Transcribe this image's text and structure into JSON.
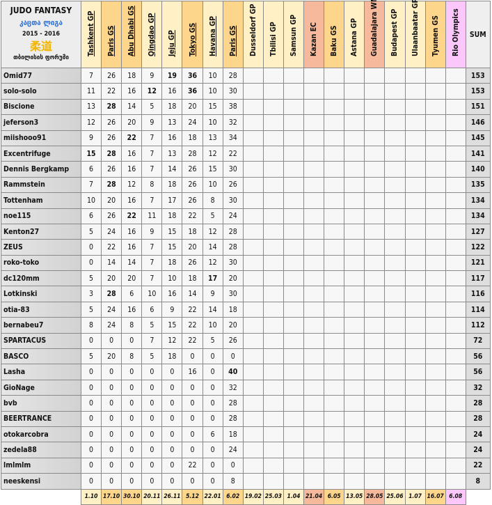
{
  "header": {
    "title": "JUDO FANTASY",
    "subtitle_georgian": "კაცთა ლიგა",
    "season": "2015 - 2016",
    "kanji": "柔道",
    "forum": "თბილისის ფორუმი",
    "sum_label": "SUM"
  },
  "colors": {
    "light": "#fff0c6",
    "orange": "#fdd68c",
    "salmon": "#f6b99c",
    "pink": "#fcc8fb"
  },
  "events": [
    {
      "name": "Tashkent GP",
      "date": "1.10",
      "color": "light",
      "completed": true
    },
    {
      "name": "Paris GS",
      "date": "17.10",
      "color": "orange",
      "completed": true
    },
    {
      "name": "Abu Dhabi GS",
      "date": "30.10",
      "color": "orange",
      "completed": true
    },
    {
      "name": "Qingdao GP",
      "date": "20.11",
      "color": "light",
      "completed": true
    },
    {
      "name": "Jeju GP",
      "date": "26.11",
      "color": "light",
      "completed": true
    },
    {
      "name": "Tokyo GS",
      "date": "5.12",
      "color": "orange",
      "completed": true
    },
    {
      "name": "Havana GP",
      "date": "22.01",
      "color": "light",
      "completed": true
    },
    {
      "name": "Paris GS",
      "date": "6.02",
      "color": "orange",
      "completed": true
    },
    {
      "name": "Dusseldorf GP",
      "date": "19.02",
      "color": "light",
      "completed": false
    },
    {
      "name": "Tbilisi GP",
      "date": "25.03",
      "color": "light",
      "completed": false
    },
    {
      "name": "Samsun GP",
      "date": "1.04",
      "color": "light",
      "completed": false
    },
    {
      "name": "Kazan EC",
      "date": "21.04",
      "color": "salmon",
      "completed": false
    },
    {
      "name": "Baku GS",
      "date": "6.05",
      "color": "orange",
      "completed": false
    },
    {
      "name": "Astana GP",
      "date": "13.05",
      "color": "light",
      "completed": false
    },
    {
      "name": "Guadalajara WM",
      "date": "28.05",
      "color": "salmon",
      "completed": false
    },
    {
      "name": "Budapest GP",
      "date": "25.06",
      "color": "light",
      "completed": false
    },
    {
      "name": "Ulaanbaatar GP",
      "date": "1.07",
      "color": "light",
      "completed": false
    },
    {
      "name": "Tyumen GS",
      "date": "16.07",
      "color": "orange",
      "completed": false
    },
    {
      "name": "Rio Olympics",
      "date": "6.08",
      "color": "pink",
      "completed": false
    }
  ],
  "players": [
    {
      "name": "Omid77",
      "scores": [
        7,
        26,
        18,
        9,
        19,
        36,
        10,
        28
      ],
      "bold": [
        4,
        5
      ],
      "sum": "153"
    },
    {
      "name": "solo-solo",
      "scores": [
        11,
        22,
        16,
        12,
        16,
        36,
        10,
        30
      ],
      "bold": [
        3,
        5
      ],
      "sum": "153"
    },
    {
      "name": "Biscione",
      "scores": [
        13,
        28,
        14,
        5,
        18,
        20,
        15,
        38
      ],
      "bold": [
        1
      ],
      "sum": "151"
    },
    {
      "name": "jeferson3",
      "scores": [
        12,
        26,
        20,
        9,
        13,
        24,
        10,
        32
      ],
      "bold": [],
      "sum": "146"
    },
    {
      "name": "miishooo91",
      "scores": [
        9,
        26,
        22,
        7,
        16,
        18,
        13,
        34
      ],
      "bold": [
        2
      ],
      "sum": "145"
    },
    {
      "name": "Excentrifuge",
      "scores": [
        15,
        28,
        16,
        7,
        13,
        28,
        12,
        22
      ],
      "bold": [
        0,
        1
      ],
      "sum": "141"
    },
    {
      "name": "Dennis Bergkamp",
      "scores": [
        6,
        26,
        16,
        7,
        14,
        26,
        15,
        30
      ],
      "bold": [],
      "sum": "140"
    },
    {
      "name": "Rammstein",
      "scores": [
        7,
        28,
        12,
        8,
        18,
        26,
        10,
        26
      ],
      "bold": [
        1
      ],
      "sum": "135"
    },
    {
      "name": "Tottenham",
      "scores": [
        10,
        20,
        16,
        7,
        17,
        26,
        8,
        30
      ],
      "bold": [],
      "sum": "134"
    },
    {
      "name": "noe115",
      "scores": [
        6,
        26,
        22,
        11,
        18,
        22,
        5,
        24
      ],
      "bold": [
        2
      ],
      "sum": "134"
    },
    {
      "name": "Kenton27",
      "scores": [
        5,
        24,
        16,
        9,
        15,
        18,
        12,
        28
      ],
      "bold": [],
      "sum": "127"
    },
    {
      "name": "ZEUS",
      "scores": [
        0,
        22,
        16,
        7,
        15,
        20,
        14,
        28
      ],
      "bold": [],
      "sum": "122"
    },
    {
      "name": "roko-toko",
      "scores": [
        0,
        14,
        14,
        7,
        18,
        26,
        12,
        30
      ],
      "bold": [],
      "sum": "121"
    },
    {
      "name": "dc120mm",
      "scores": [
        5,
        20,
        20,
        7,
        10,
        18,
        17,
        20
      ],
      "bold": [
        6
      ],
      "sum": "117"
    },
    {
      "name": "Lotkinski",
      "scores": [
        3,
        28,
        6,
        10,
        16,
        14,
        9,
        30
      ],
      "bold": [
        1
      ],
      "sum": "116"
    },
    {
      "name": "otia-83",
      "scores": [
        5,
        24,
        16,
        6,
        9,
        22,
        14,
        18
      ],
      "bold": [],
      "sum": "114"
    },
    {
      "name": "bernabeu7",
      "scores": [
        8,
        24,
        8,
        5,
        15,
        22,
        10,
        20
      ],
      "bold": [],
      "sum": "112"
    },
    {
      "name": "SPARTACUS",
      "scores": [
        0,
        0,
        0,
        7,
        12,
        22,
        5,
        26
      ],
      "bold": [],
      "sum": "72"
    },
    {
      "name": "BASCO",
      "scores": [
        5,
        20,
        8,
        5,
        18,
        0,
        0,
        0
      ],
      "bold": [],
      "sum": "56"
    },
    {
      "name": "Lasha",
      "scores": [
        0,
        0,
        0,
        0,
        0,
        16,
        0,
        40
      ],
      "bold": [
        7
      ],
      "sum": "56"
    },
    {
      "name": "GioNage",
      "scores": [
        0,
        0,
        0,
        0,
        0,
        0,
        0,
        32
      ],
      "bold": [],
      "sum": "32"
    },
    {
      "name": "bvb",
      "scores": [
        0,
        0,
        0,
        0,
        0,
        0,
        0,
        28
      ],
      "bold": [],
      "sum": "28"
    },
    {
      "name": "BEERTRANCE",
      "scores": [
        0,
        0,
        0,
        0,
        0,
        0,
        0,
        28
      ],
      "bold": [],
      "sum": "28"
    },
    {
      "name": "otokarcobra",
      "scores": [
        0,
        0,
        0,
        0,
        0,
        0,
        6,
        18
      ],
      "bold": [],
      "sum": "24"
    },
    {
      "name": "zedela88",
      "scores": [
        0,
        0,
        0,
        0,
        0,
        0,
        0,
        24
      ],
      "bold": [],
      "sum": "24"
    },
    {
      "name": "lmlmlm",
      "scores": [
        0,
        0,
        0,
        0,
        0,
        22,
        0,
        0
      ],
      "bold": [],
      "sum": "22"
    },
    {
      "name": "neeskensi",
      "scores": [
        0,
        0,
        0,
        0,
        0,
        0,
        0,
        8
      ],
      "bold": [],
      "sum": "8"
    }
  ]
}
